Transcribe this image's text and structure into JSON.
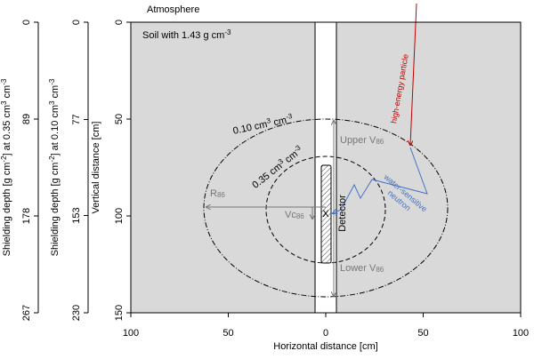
{
  "title": "Atmosphere",
  "soil_label": [
    "Soil with 1.43 g cm",
    {
      "sup": "-3"
    }
  ],
  "x_axis": {
    "label": "Horizontal distance [cm]",
    "xlim": [
      -100,
      100
    ],
    "xticks": [
      {
        "value": -100,
        "label": "100"
      },
      {
        "value": -50,
        "label": "50"
      },
      0,
      50,
      100
    ]
  },
  "y_axis": {
    "label": "Vertical distance [cm]",
    "ylim": [
      0,
      150
    ],
    "yticks": [
      0,
      50,
      100,
      150
    ]
  },
  "shielding_010": {
    "label": [
      "Shielding depth [g cm",
      {
        "sup": "-2"
      },
      "] at 0.10 cm",
      {
        "sup": "3"
      },
      " cm",
      {
        "sup": "-3"
      }
    ],
    "ylim": [
      0,
      230
    ],
    "yticks": [
      0,
      77,
      153,
      230
    ]
  },
  "shielding_035": {
    "label": [
      "Shielding depth [g cm",
      {
        "sup": "-2"
      },
      "] at 0.35 cm",
      {
        "sup": "3"
      },
      " cm",
      {
        "sup": "-3"
      }
    ],
    "ylim": [
      0,
      267
    ],
    "yticks": [
      0,
      89,
      178,
      267
    ]
  },
  "labels": {
    "outer": [
      "0.10 cm",
      {
        "sup": "3"
      },
      " cm",
      {
        "sup": "-3"
      }
    ],
    "inner": [
      "0.35 cm",
      {
        "sup": "3"
      },
      " cm",
      {
        "sup": "-3"
      }
    ],
    "upper": [
      "Upper V",
      {
        "sub": "86"
      }
    ],
    "lower": [
      "Lower V",
      {
        "sub": "86"
      }
    ],
    "radius": [
      "R",
      {
        "sub": "86"
      }
    ],
    "vc": [
      "Vc",
      {
        "sub": "86"
      }
    ],
    "detector": [
      "Detector"
    ],
    "marker": [
      "X"
    ],
    "particle": [
      "high-energy particle"
    ],
    "neutron": [
      "water-sensitive",
      "neutron"
    ]
  }
}
